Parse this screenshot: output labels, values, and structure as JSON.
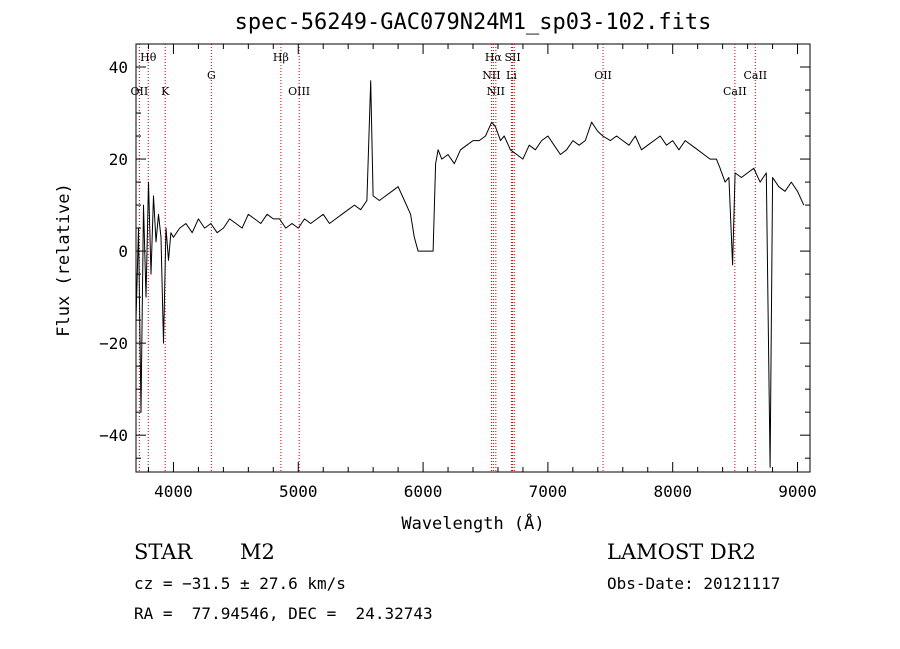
{
  "chart_data": {
    "type": "line",
    "title": "spec-56249-GAC079N24M1_sp03-102.fits",
    "xlabel": "Wavelength (Å)",
    "ylabel": "Flux (relative)",
    "xlim": [
      3700,
      9100
    ],
    "ylim": [
      -48,
      45
    ],
    "x_ticks": [
      4000,
      5000,
      6000,
      7000,
      8000,
      9000
    ],
    "y_ticks": [
      -40,
      -20,
      0,
      20,
      40
    ],
    "x_tick_labels": [
      "4000",
      "5000",
      "6000",
      "7000",
      "8000",
      "9000"
    ],
    "y_tick_labels": [
      "−40",
      "−20",
      "0",
      "20",
      "40"
    ],
    "grid": false,
    "line_color": "#000000",
    "marker_color": "#cc0000",
    "series": [
      {
        "x": [
          3700,
          3720,
          3740,
          3760,
          3780,
          3800,
          3820,
          3840,
          3860,
          3880,
          3900,
          3920,
          3940,
          3960,
          3980,
          4000,
          4050,
          4100,
          4150,
          4200,
          4250,
          4300,
          4350,
          4400,
          4450,
          4500,
          4550,
          4600,
          4650,
          4700,
          4750,
          4800,
          4850,
          4900,
          4950,
          5000,
          5050,
          5100,
          5150,
          5200,
          5250,
          5300,
          5350,
          5400,
          5450,
          5500,
          5550,
          5580,
          5600,
          5650,
          5700,
          5750,
          5800,
          5850,
          5900,
          5930,
          5960,
          6000,
          6050,
          6080,
          6100,
          6120,
          6150,
          6200,
          6250,
          6300,
          6350,
          6400,
          6450,
          6500,
          6550,
          6580,
          6620,
          6650,
          6700,
          6750,
          6800,
          6850,
          6900,
          6950,
          7000,
          7050,
          7100,
          7150,
          7200,
          7250,
          7300,
          7350,
          7400,
          7440,
          7500,
          7550,
          7600,
          7650,
          7700,
          7750,
          7800,
          7850,
          7900,
          7950,
          8000,
          8050,
          8100,
          8150,
          8200,
          8250,
          8300,
          8350,
          8380,
          8420,
          8450,
          8480,
          8500,
          8550,
          8600,
          8650,
          8700,
          8750,
          8780,
          8800,
          8850,
          8900,
          8950,
          9000,
          9050
        ],
        "y": [
          -15,
          5,
          -35,
          10,
          -10,
          15,
          -5,
          12,
          2,
          8,
          3,
          -20,
          5,
          -2,
          4,
          3,
          5,
          6,
          4,
          7,
          5,
          6,
          4,
          5,
          7,
          6,
          5,
          8,
          7,
          6,
          8,
          7,
          7,
          5,
          6,
          5,
          7,
          6,
          7,
          8,
          6,
          7,
          8,
          9,
          10,
          9,
          11,
          37,
          12,
          11,
          12,
          13,
          14,
          11,
          8,
          3,
          0,
          0,
          0,
          0,
          19,
          22,
          20,
          21,
          19,
          22,
          23,
          24,
          24,
          25,
          28,
          27,
          24,
          25,
          22,
          21,
          20,
          23,
          22,
          24,
          25,
          23,
          21,
          22,
          24,
          23,
          24,
          28,
          26,
          25,
          24,
          25,
          24,
          23,
          25,
          22,
          23,
          24,
          25,
          23,
          24,
          22,
          24,
          23,
          22,
          21,
          20,
          20,
          18,
          15,
          16,
          -3,
          17,
          16,
          17,
          18,
          15,
          17,
          -47,
          16,
          14,
          13,
          15,
          13,
          10
        ],
        "name": ""
      }
    ],
    "markers": [
      {
        "x": 3727,
        "label": "OII",
        "row": 3
      },
      {
        "x": 3798,
        "label": "Hθ",
        "row": 1
      },
      {
        "x": 3934,
        "label": "K",
        "row": 3
      },
      {
        "x": 4304,
        "label": "G",
        "row": 2
      },
      {
        "x": 4861,
        "label": "Hβ",
        "row": 1
      },
      {
        "x": 5007,
        "label": "OIII",
        "row": 3
      },
      {
        "x": 6548,
        "label": "NII",
        "row": 2
      },
      {
        "x": 6563,
        "label": "Hα",
        "row": 1
      },
      {
        "x": 6583,
        "label": "NII",
        "row": 3
      },
      {
        "x": 6708,
        "label": "Li",
        "row": 2
      },
      {
        "x": 6717,
        "label": "SII",
        "row": 1
      },
      {
        "x": 6731,
        "label": "",
        "row": 1
      },
      {
        "x": 7442,
        "label": "OII",
        "row": 2
      },
      {
        "x": 8498,
        "label": "CaII",
        "row": 3
      },
      {
        "x": 8662,
        "label": "CaII",
        "row": 2
      }
    ]
  },
  "info": {
    "object_class": "STAR",
    "subclass": "M2",
    "survey": "LAMOST DR2",
    "cz": "cz = −31.5 ± 27.6 km/s",
    "obs_date": "Obs-Date: 20121117",
    "radec": "RA =  77.94546, DEC =  24.32743"
  }
}
